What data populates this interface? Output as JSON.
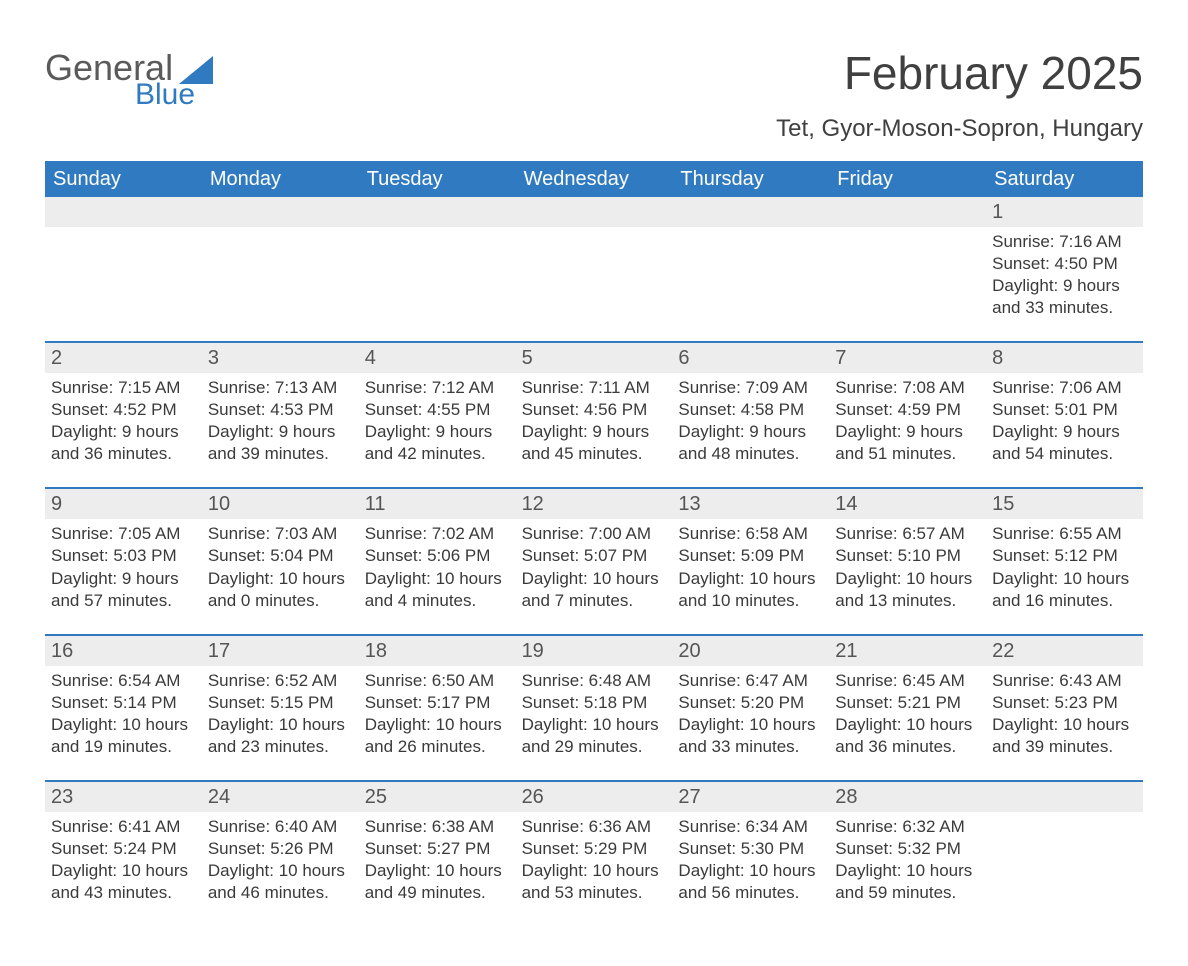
{
  "brand": {
    "main": "General",
    "sub": "Blue"
  },
  "title": "February 2025",
  "location": "Tet, Gyor-Moson-Sopron, Hungary",
  "weekdays": [
    "Sunday",
    "Monday",
    "Tuesday",
    "Wednesday",
    "Thursday",
    "Friday",
    "Saturday"
  ],
  "labels": {
    "sunrise": "Sunrise:",
    "sunset": "Sunset:",
    "daylight": "Daylight:"
  },
  "colors": {
    "brand_blue": "#2f7ac0",
    "header_bg": "#2f7ac0",
    "header_text": "#ffffff",
    "shade_bg": "#ededed",
    "text": "#3a3a3a"
  },
  "typography": {
    "title_fontsize": 46,
    "location_fontsize": 24,
    "weekday_fontsize": 20,
    "daynum_fontsize": 20,
    "body_fontsize": 17
  },
  "layout": {
    "columns": 7,
    "rows": 5,
    "blank_leading_cells": 6
  },
  "days": [
    {
      "num": "1",
      "sunrise": "7:16 AM",
      "sunset": "4:50 PM",
      "daylight": "9 hours and 33 minutes."
    },
    {
      "num": "2",
      "sunrise": "7:15 AM",
      "sunset": "4:52 PM",
      "daylight": "9 hours and 36 minutes."
    },
    {
      "num": "3",
      "sunrise": "7:13 AM",
      "sunset": "4:53 PM",
      "daylight": "9 hours and 39 minutes."
    },
    {
      "num": "4",
      "sunrise": "7:12 AM",
      "sunset": "4:55 PM",
      "daylight": "9 hours and 42 minutes."
    },
    {
      "num": "5",
      "sunrise": "7:11 AM",
      "sunset": "4:56 PM",
      "daylight": "9 hours and 45 minutes."
    },
    {
      "num": "6",
      "sunrise": "7:09 AM",
      "sunset": "4:58 PM",
      "daylight": "9 hours and 48 minutes."
    },
    {
      "num": "7",
      "sunrise": "7:08 AM",
      "sunset": "4:59 PM",
      "daylight": "9 hours and 51 minutes."
    },
    {
      "num": "8",
      "sunrise": "7:06 AM",
      "sunset": "5:01 PM",
      "daylight": "9 hours and 54 minutes."
    },
    {
      "num": "9",
      "sunrise": "7:05 AM",
      "sunset": "5:03 PM",
      "daylight": "9 hours and 57 minutes."
    },
    {
      "num": "10",
      "sunrise": "7:03 AM",
      "sunset": "5:04 PM",
      "daylight": "10 hours and 0 minutes."
    },
    {
      "num": "11",
      "sunrise": "7:02 AM",
      "sunset": "5:06 PM",
      "daylight": "10 hours and 4 minutes."
    },
    {
      "num": "12",
      "sunrise": "7:00 AM",
      "sunset": "5:07 PM",
      "daylight": "10 hours and 7 minutes."
    },
    {
      "num": "13",
      "sunrise": "6:58 AM",
      "sunset": "5:09 PM",
      "daylight": "10 hours and 10 minutes."
    },
    {
      "num": "14",
      "sunrise": "6:57 AM",
      "sunset": "5:10 PM",
      "daylight": "10 hours and 13 minutes."
    },
    {
      "num": "15",
      "sunrise": "6:55 AM",
      "sunset": "5:12 PM",
      "daylight": "10 hours and 16 minutes."
    },
    {
      "num": "16",
      "sunrise": "6:54 AM",
      "sunset": "5:14 PM",
      "daylight": "10 hours and 19 minutes."
    },
    {
      "num": "17",
      "sunrise": "6:52 AM",
      "sunset": "5:15 PM",
      "daylight": "10 hours and 23 minutes."
    },
    {
      "num": "18",
      "sunrise": "6:50 AM",
      "sunset": "5:17 PM",
      "daylight": "10 hours and 26 minutes."
    },
    {
      "num": "19",
      "sunrise": "6:48 AM",
      "sunset": "5:18 PM",
      "daylight": "10 hours and 29 minutes."
    },
    {
      "num": "20",
      "sunrise": "6:47 AM",
      "sunset": "5:20 PM",
      "daylight": "10 hours and 33 minutes."
    },
    {
      "num": "21",
      "sunrise": "6:45 AM",
      "sunset": "5:21 PM",
      "daylight": "10 hours and 36 minutes."
    },
    {
      "num": "22",
      "sunrise": "6:43 AM",
      "sunset": "5:23 PM",
      "daylight": "10 hours and 39 minutes."
    },
    {
      "num": "23",
      "sunrise": "6:41 AM",
      "sunset": "5:24 PM",
      "daylight": "10 hours and 43 minutes."
    },
    {
      "num": "24",
      "sunrise": "6:40 AM",
      "sunset": "5:26 PM",
      "daylight": "10 hours and 46 minutes."
    },
    {
      "num": "25",
      "sunrise": "6:38 AM",
      "sunset": "5:27 PM",
      "daylight": "10 hours and 49 minutes."
    },
    {
      "num": "26",
      "sunrise": "6:36 AM",
      "sunset": "5:29 PM",
      "daylight": "10 hours and 53 minutes."
    },
    {
      "num": "27",
      "sunrise": "6:34 AM",
      "sunset": "5:30 PM",
      "daylight": "10 hours and 56 minutes."
    },
    {
      "num": "28",
      "sunrise": "6:32 AM",
      "sunset": "5:32 PM",
      "daylight": "10 hours and 59 minutes."
    }
  ]
}
